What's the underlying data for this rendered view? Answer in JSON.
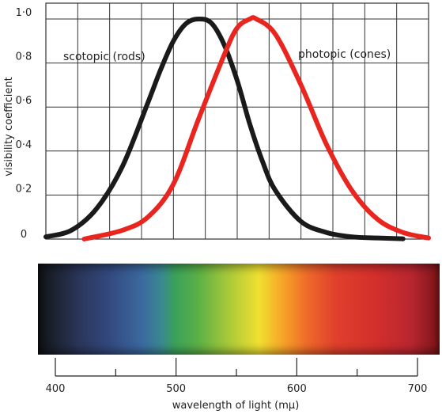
{
  "chart_data": {
    "type": "line",
    "title": "",
    "ylabel": "visibility coefficient",
    "xlabel": "wavelength of light (mμ)",
    "xlim": [
      400,
      700
    ],
    "ylim": [
      0,
      1.0
    ],
    "y_ticks": [
      "0",
      "0·2",
      "0·4",
      "0·6",
      "0·8",
      "1·0"
    ],
    "x_ticks": [
      "400",
      "500",
      "600",
      "700"
    ],
    "grid": true,
    "series": [
      {
        "name": "scotopic (rods)",
        "color": "#1a1a1a",
        "x": [
          400,
          420,
          440,
          460,
          480,
          490,
          500,
          510,
          520,
          530,
          540,
          550,
          560,
          570,
          580,
          600,
          620,
          640,
          660,
          680
        ],
        "y": [
          0.01,
          0.04,
          0.14,
          0.33,
          0.62,
          0.77,
          0.9,
          0.98,
          1.0,
          0.98,
          0.88,
          0.72,
          0.52,
          0.35,
          0.22,
          0.08,
          0.03,
          0.01,
          0.005,
          0.001
        ]
      },
      {
        "name": "photopic (cones)",
        "color": "#e8251f",
        "x": [
          430,
          460,
          480,
          500,
          520,
          540,
          550,
          560,
          565,
          580,
          600,
          620,
          640,
          660,
          680,
          700
        ],
        "y": [
          0.0,
          0.04,
          0.1,
          0.25,
          0.55,
          0.84,
          0.96,
          1.0,
          1.0,
          0.93,
          0.7,
          0.43,
          0.22,
          0.09,
          0.03,
          0.005
        ]
      }
    ]
  }
}
